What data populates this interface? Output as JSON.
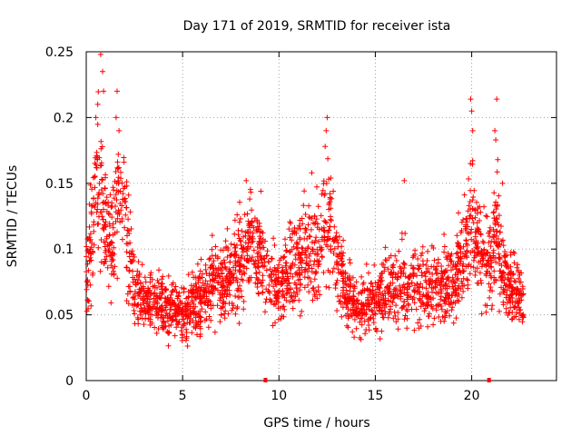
{
  "chart_data": {
    "type": "scatter",
    "title": "Day 171 of 2019, SRMTID for receiver ista",
    "xlabel": "GPS time / hours",
    "ylabel": "SRMTID / TECUs",
    "xlim": [
      0,
      24.4
    ],
    "ylim": [
      0,
      0.25
    ],
    "x_ticks": [
      0,
      5,
      10,
      15,
      20
    ],
    "y_ticks": [
      0,
      0.05,
      0.1,
      0.15,
      0.2,
      0.25
    ],
    "x_tick_labels": [
      "0",
      "5",
      "10",
      "15",
      "20"
    ],
    "y_tick_labels": [
      "0",
      "0.05",
      "0.1",
      "0.15",
      "0.2",
      "0.25"
    ],
    "grid": true,
    "marker": "plus",
    "color": "#ff0000",
    "highlight_marks_x": [
      9.3,
      20.9
    ],
    "series_profile": [
      {
        "x": 0.0,
        "y": 0.085
      },
      {
        "x": 0.3,
        "y": 0.11
      },
      {
        "x": 0.6,
        "y": 0.15
      },
      {
        "x": 0.9,
        "y": 0.13
      },
      {
        "x": 1.2,
        "y": 0.1
      },
      {
        "x": 1.5,
        "y": 0.12
      },
      {
        "x": 1.8,
        "y": 0.15
      },
      {
        "x": 2.1,
        "y": 0.11
      },
      {
        "x": 2.5,
        "y": 0.07
      },
      {
        "x": 3.0,
        "y": 0.06
      },
      {
        "x": 4.0,
        "y": 0.055
      },
      {
        "x": 5.0,
        "y": 0.05
      },
      {
        "x": 6.0,
        "y": 0.065
      },
      {
        "x": 7.0,
        "y": 0.075
      },
      {
        "x": 8.0,
        "y": 0.09
      },
      {
        "x": 8.5,
        "y": 0.11
      },
      {
        "x": 9.0,
        "y": 0.1
      },
      {
        "x": 9.5,
        "y": 0.075
      },
      {
        "x": 10.0,
        "y": 0.07
      },
      {
        "x": 10.5,
        "y": 0.08
      },
      {
        "x": 11.0,
        "y": 0.09
      },
      {
        "x": 11.5,
        "y": 0.095
      },
      {
        "x": 12.0,
        "y": 0.1
      },
      {
        "x": 12.5,
        "y": 0.12
      },
      {
        "x": 12.8,
        "y": 0.11
      },
      {
        "x": 13.2,
        "y": 0.08
      },
      {
        "x": 14.0,
        "y": 0.055
      },
      {
        "x": 15.0,
        "y": 0.06
      },
      {
        "x": 16.0,
        "y": 0.07
      },
      {
        "x": 17.0,
        "y": 0.075
      },
      {
        "x": 18.0,
        "y": 0.07
      },
      {
        "x": 19.0,
        "y": 0.075
      },
      {
        "x": 19.7,
        "y": 0.1
      },
      {
        "x": 20.0,
        "y": 0.13
      },
      {
        "x": 20.4,
        "y": 0.1
      },
      {
        "x": 21.0,
        "y": 0.09
      },
      {
        "x": 21.3,
        "y": 0.12
      },
      {
        "x": 21.6,
        "y": 0.085
      },
      {
        "x": 22.0,
        "y": 0.07
      },
      {
        "x": 22.7,
        "y": 0.06
      }
    ],
    "spikes": [
      {
        "x": 0.75,
        "y": 0.248
      },
      {
        "x": 0.85,
        "y": 0.235
      },
      {
        "x": 0.9,
        "y": 0.22
      },
      {
        "x": 0.6,
        "y": 0.21
      },
      {
        "x": 0.5,
        "y": 0.2
      },
      {
        "x": 1.6,
        "y": 0.22
      },
      {
        "x": 1.55,
        "y": 0.2
      },
      {
        "x": 1.7,
        "y": 0.19
      },
      {
        "x": 2.1,
        "y": 0.148
      },
      {
        "x": 8.3,
        "y": 0.152
      },
      {
        "x": 12.5,
        "y": 0.2
      },
      {
        "x": 12.45,
        "y": 0.19
      },
      {
        "x": 12.4,
        "y": 0.178
      },
      {
        "x": 11.7,
        "y": 0.158
      },
      {
        "x": 16.5,
        "y": 0.152
      },
      {
        "x": 19.95,
        "y": 0.214
      },
      {
        "x": 20.0,
        "y": 0.205
      },
      {
        "x": 20.05,
        "y": 0.19
      },
      {
        "x": 21.3,
        "y": 0.214
      },
      {
        "x": 21.2,
        "y": 0.19
      },
      {
        "x": 21.25,
        "y": 0.183
      },
      {
        "x": 21.35,
        "y": 0.168
      },
      {
        "x": 21.6,
        "y": 0.15
      }
    ]
  }
}
